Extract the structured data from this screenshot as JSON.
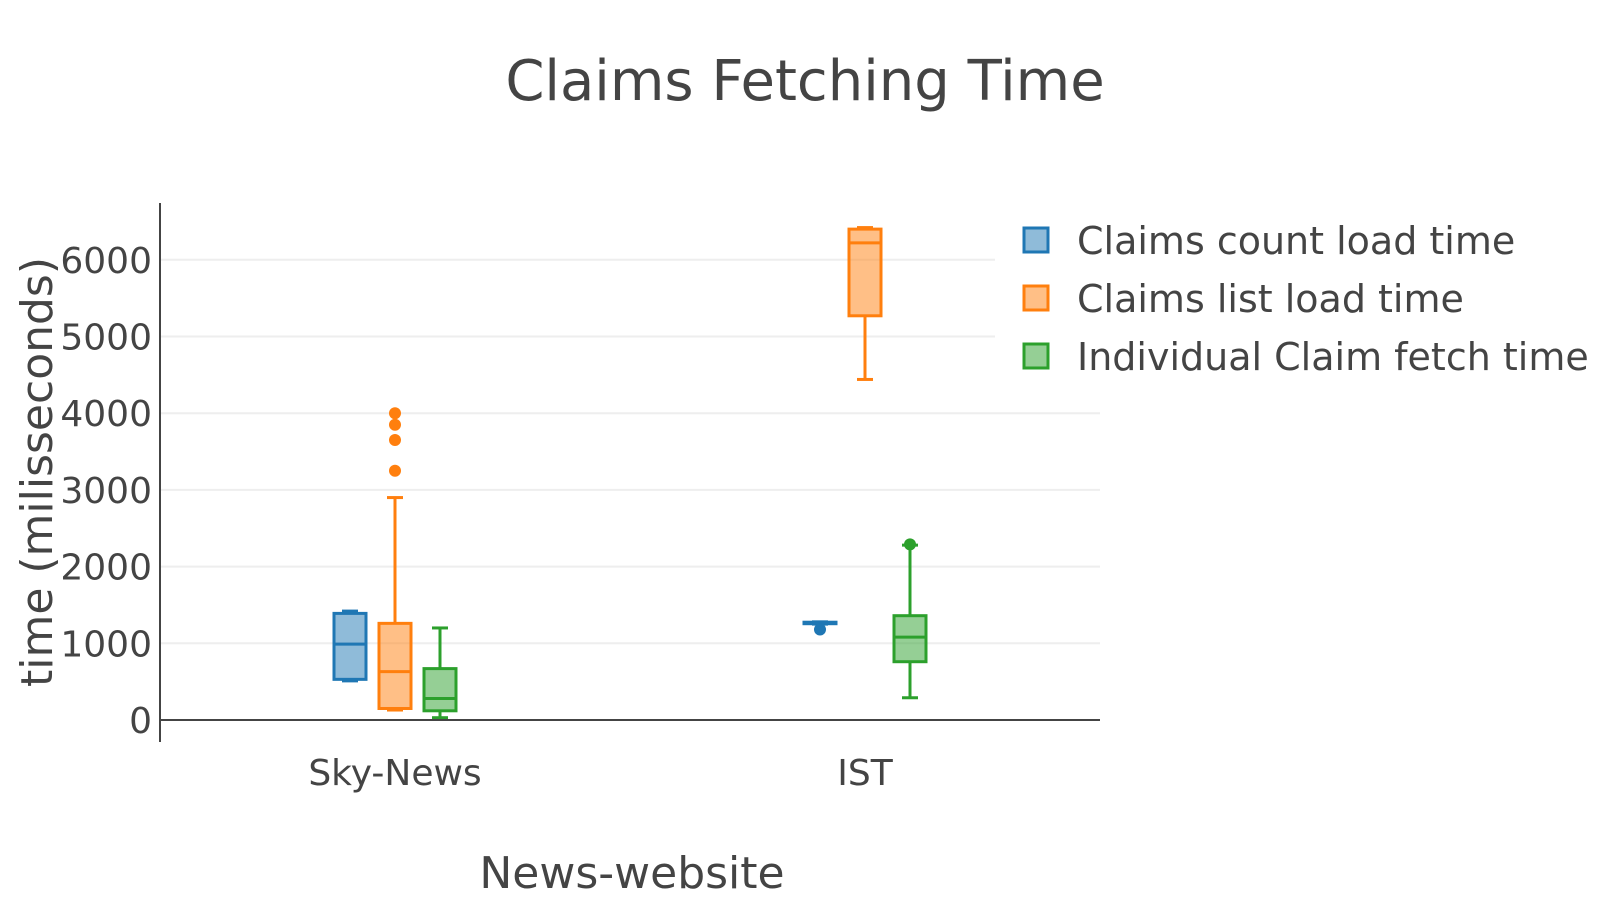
{
  "chart_data": {
    "type": "box",
    "title": "Claims Fetching Time",
    "xlabel": "News-website",
    "ylabel": "time (milisseconds)",
    "ylim": [
      -300,
      6750
    ],
    "yticks": [
      0,
      1000,
      2000,
      3000,
      4000,
      5000,
      6000
    ],
    "grid": true,
    "legend_position": "right",
    "categories": [
      "Sky-News",
      "IST"
    ],
    "series": [
      {
        "name": "Claims count load time",
        "color": "#1f77b4",
        "boxes": [
          {
            "category": "Sky-News",
            "min": 510,
            "q1": 530,
            "median": 990,
            "q3": 1390,
            "max": 1420,
            "outliers": []
          },
          {
            "category": "IST",
            "min": 1250,
            "q1": 1260,
            "median": 1270,
            "q3": 1275,
            "max": 1280,
            "outliers": [
              1180
            ]
          }
        ]
      },
      {
        "name": "Claims list load time",
        "color": "#ff7f0e",
        "boxes": [
          {
            "category": "Sky-News",
            "min": 130,
            "q1": 150,
            "median": 630,
            "q3": 1260,
            "max": 2900,
            "outliers": [
              3250,
              3650,
              3850,
              4000
            ]
          },
          {
            "category": "IST",
            "min": 4440,
            "q1": 5270,
            "median": 6220,
            "q3": 6400,
            "max": 6420,
            "outliers": []
          }
        ]
      },
      {
        "name": "Individual Claim fetch time",
        "color": "#2ca02c",
        "boxes": [
          {
            "category": "Sky-News",
            "min": 30,
            "q1": 120,
            "median": 280,
            "q3": 670,
            "max": 1200,
            "outliers": []
          },
          {
            "category": "IST",
            "min": 290,
            "q1": 760,
            "median": 1080,
            "q3": 1360,
            "max": 2280,
            "outliers": [
              2290
            ]
          }
        ]
      }
    ]
  }
}
